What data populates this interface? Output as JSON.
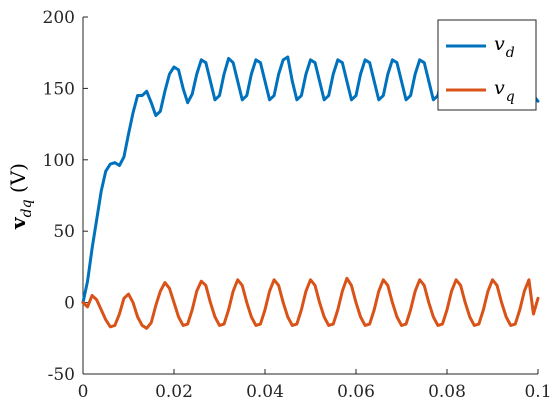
{
  "chart_data": {
    "type": "line",
    "title": "",
    "xlabel": "",
    "ylabel": {
      "main": "v",
      "subscript": "dq",
      "unit": " (V)"
    },
    "xlim": [
      0,
      0.1
    ],
    "ylim": [
      -50,
      200
    ],
    "x_ticks": [
      "0",
      "0.02",
      "0.04",
      "0.06",
      "0.08",
      "0.1"
    ],
    "x_tick_values": [
      0,
      0.02,
      0.04,
      0.06,
      0.08,
      0.1
    ],
    "y_ticks": [
      "-50",
      "0",
      "50",
      "100",
      "150",
      "200"
    ],
    "y_tick_values": [
      -50,
      0,
      50,
      100,
      150,
      200
    ],
    "grid": false,
    "legend_position": "top-right",
    "series": [
      {
        "name": "v",
        "name_subscript": "d",
        "color": "#0072BD",
        "x": [
          0,
          0.001,
          0.002,
          0.003,
          0.004,
          0.005,
          0.006,
          0.007,
          0.008,
          0.009,
          0.01,
          0.011,
          0.012,
          0.013,
          0.014,
          0.015,
          0.016,
          0.017,
          0.018,
          0.019,
          0.02,
          0.021,
          0.022,
          0.023,
          0.024,
          0.025,
          0.026,
          0.027,
          0.028,
          0.029,
          0.03,
          0.031,
          0.032,
          0.033,
          0.034,
          0.035,
          0.036,
          0.037,
          0.038,
          0.039,
          0.04,
          0.041,
          0.042,
          0.043,
          0.044,
          0.045,
          0.046,
          0.047,
          0.048,
          0.049,
          0.05,
          0.051,
          0.052,
          0.053,
          0.054,
          0.055,
          0.056,
          0.057,
          0.058,
          0.059,
          0.06,
          0.061,
          0.062,
          0.063,
          0.064,
          0.065,
          0.066,
          0.067,
          0.068,
          0.069,
          0.07,
          0.071,
          0.072,
          0.073,
          0.074,
          0.075,
          0.076,
          0.077,
          0.078,
          0.079,
          0.08,
          0.081,
          0.082,
          0.083,
          0.084,
          0.085,
          0.086,
          0.087,
          0.088,
          0.089,
          0.09,
          0.091,
          0.092,
          0.093,
          0.094,
          0.095,
          0.096,
          0.097,
          0.098,
          0.099,
          0.1
        ],
        "values": [
          0,
          15,
          38,
          58,
          78,
          92,
          97,
          98,
          96,
          102,
          118,
          133,
          145,
          145,
          148,
          140,
          131,
          134,
          148,
          160,
          165,
          163,
          150,
          140,
          146,
          160,
          170,
          168,
          155,
          142,
          145,
          160,
          171,
          168,
          155,
          142,
          145,
          160,
          170,
          168,
          155,
          142,
          145,
          160,
          170,
          172,
          155,
          142,
          145,
          160,
          170,
          168,
          155,
          142,
          145,
          160,
          170,
          168,
          155,
          142,
          145,
          160,
          170,
          168,
          155,
          142,
          145,
          160,
          170,
          168,
          155,
          142,
          145,
          160,
          170,
          168,
          155,
          142,
          145,
          160,
          170,
          168,
          155,
          142,
          145,
          160,
          170,
          168,
          155,
          142,
          145,
          160,
          170,
          168,
          155,
          142,
          145,
          158,
          160,
          145,
          141
        ]
      },
      {
        "name": "v",
        "name_subscript": "q",
        "color": "#D95319",
        "x": [
          0,
          0.001,
          0.002,
          0.003,
          0.004,
          0.005,
          0.006,
          0.007,
          0.008,
          0.009,
          0.01,
          0.011,
          0.012,
          0.013,
          0.014,
          0.015,
          0.016,
          0.017,
          0.018,
          0.019,
          0.02,
          0.021,
          0.022,
          0.023,
          0.024,
          0.025,
          0.026,
          0.027,
          0.028,
          0.029,
          0.03,
          0.031,
          0.032,
          0.033,
          0.034,
          0.035,
          0.036,
          0.037,
          0.038,
          0.039,
          0.04,
          0.041,
          0.042,
          0.043,
          0.044,
          0.045,
          0.046,
          0.047,
          0.048,
          0.049,
          0.05,
          0.051,
          0.052,
          0.053,
          0.054,
          0.055,
          0.056,
          0.057,
          0.058,
          0.059,
          0.06,
          0.061,
          0.062,
          0.063,
          0.064,
          0.065,
          0.066,
          0.067,
          0.068,
          0.069,
          0.07,
          0.071,
          0.072,
          0.073,
          0.074,
          0.075,
          0.076,
          0.077,
          0.078,
          0.079,
          0.08,
          0.081,
          0.082,
          0.083,
          0.084,
          0.085,
          0.086,
          0.087,
          0.088,
          0.089,
          0.09,
          0.091,
          0.092,
          0.093,
          0.094,
          0.095,
          0.096,
          0.097,
          0.098,
          0.099,
          0.1
        ],
        "values": [
          0,
          -3,
          5,
          2,
          -5,
          -12,
          -17,
          -16,
          -8,
          3,
          6,
          0,
          -10,
          -16,
          -18,
          -14,
          -2,
          8,
          14,
          10,
          0,
          -10,
          -16,
          -15,
          -5,
          8,
          15,
          12,
          0,
          -10,
          -16,
          -15,
          -5,
          8,
          16,
          12,
          0,
          -10,
          -16,
          -15,
          -5,
          8,
          16,
          12,
          0,
          -10,
          -16,
          -15,
          -5,
          8,
          16,
          12,
          0,
          -10,
          -16,
          -15,
          -5,
          8,
          17,
          12,
          0,
          -10,
          -16,
          -15,
          -5,
          8,
          16,
          12,
          0,
          -10,
          -16,
          -15,
          -5,
          8,
          16,
          12,
          0,
          -10,
          -16,
          -15,
          -5,
          8,
          16,
          12,
          0,
          -10,
          -16,
          -15,
          -5,
          8,
          16,
          12,
          0,
          -10,
          -16,
          -15,
          -5,
          8,
          16,
          -8,
          3
        ]
      }
    ]
  }
}
